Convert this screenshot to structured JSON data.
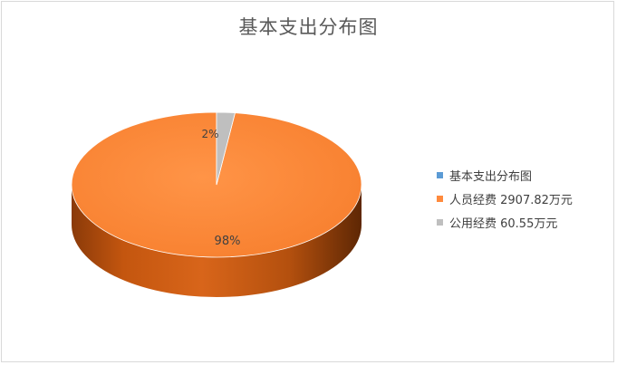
{
  "chart_data": {
    "type": "pie",
    "title": "基本支出分布图",
    "slices": [
      {
        "label": "人员经费 2907.82万元",
        "value": 2907.82,
        "percent_label": "98%",
        "color": "#ff8a3d"
      },
      {
        "label": "公用经费 60.55万元",
        "value": 60.55,
        "percent_label": "2%",
        "color": "#bfbfbf"
      }
    ],
    "legend": {
      "placement": "right",
      "entries": [
        {
          "label": "基本支出分布图",
          "color": "#5b9bd5"
        },
        {
          "label": "人员经费 2907.82万元",
          "color": "#ff8a3d"
        },
        {
          "label": "公用经费 60.55万元",
          "color": "#bfbfbf"
        }
      ]
    },
    "style": "3d"
  }
}
